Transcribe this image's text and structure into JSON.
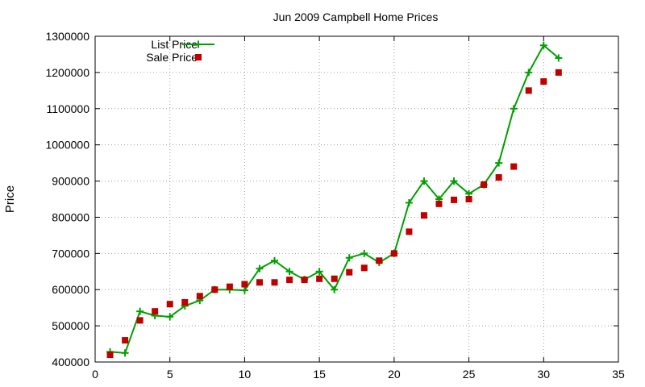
{
  "chart_data": {
    "type": "line",
    "title": "Jun 2009 Campbell Home Prices",
    "xlabel": "",
    "ylabel": "Price",
    "xlim": [
      0,
      35
    ],
    "ylim": [
      400000,
      1300000
    ],
    "x_ticks": [
      "0",
      "5",
      "10",
      "15",
      "20",
      "25",
      "30",
      "35"
    ],
    "y_ticks": [
      "400000",
      "500000",
      "600000",
      "700000",
      "800000",
      "900000",
      "1000000",
      "1100000",
      "1200000",
      "1300000"
    ],
    "grid": true,
    "legend_position": "top-left",
    "series": [
      {
        "name": "List Price",
        "style": "line-with-plus-markers",
        "color": "#00a000",
        "x": [
          1,
          2,
          3,
          4,
          5,
          6,
          7,
          8,
          9,
          10,
          11,
          12,
          13,
          14,
          15,
          16,
          17,
          18,
          19,
          20,
          21,
          22,
          23,
          24,
          25,
          26,
          27,
          28,
          29,
          30,
          31
        ],
        "y": [
          428000,
          425000,
          540000,
          528000,
          525000,
          555000,
          570000,
          600000,
          600000,
          598000,
          658000,
          680000,
          650000,
          628000,
          650000,
          600000,
          688000,
          700000,
          675000,
          700000,
          840000,
          900000,
          850000,
          900000,
          865000,
          890000,
          950000,
          1100000,
          1200000,
          1275000,
          1240000
        ]
      },
      {
        "name": "Sale Price",
        "style": "square-markers",
        "color": "#c00000",
        "x": [
          1,
          2,
          3,
          4,
          5,
          6,
          7,
          8,
          9,
          10,
          11,
          12,
          13,
          14,
          15,
          16,
          17,
          18,
          19,
          20,
          21,
          22,
          23,
          24,
          25,
          26,
          27,
          28,
          29,
          30,
          31
        ],
        "y": [
          420000,
          460000,
          515000,
          540000,
          560000,
          565000,
          582000,
          600000,
          608000,
          615000,
          620000,
          620000,
          627000,
          627000,
          630000,
          630000,
          648000,
          660000,
          680000,
          700000,
          760000,
          805000,
          837000,
          848000,
          850000,
          890000,
          910000,
          940000,
          1150000,
          1175000,
          1200000
        ]
      }
    ]
  }
}
